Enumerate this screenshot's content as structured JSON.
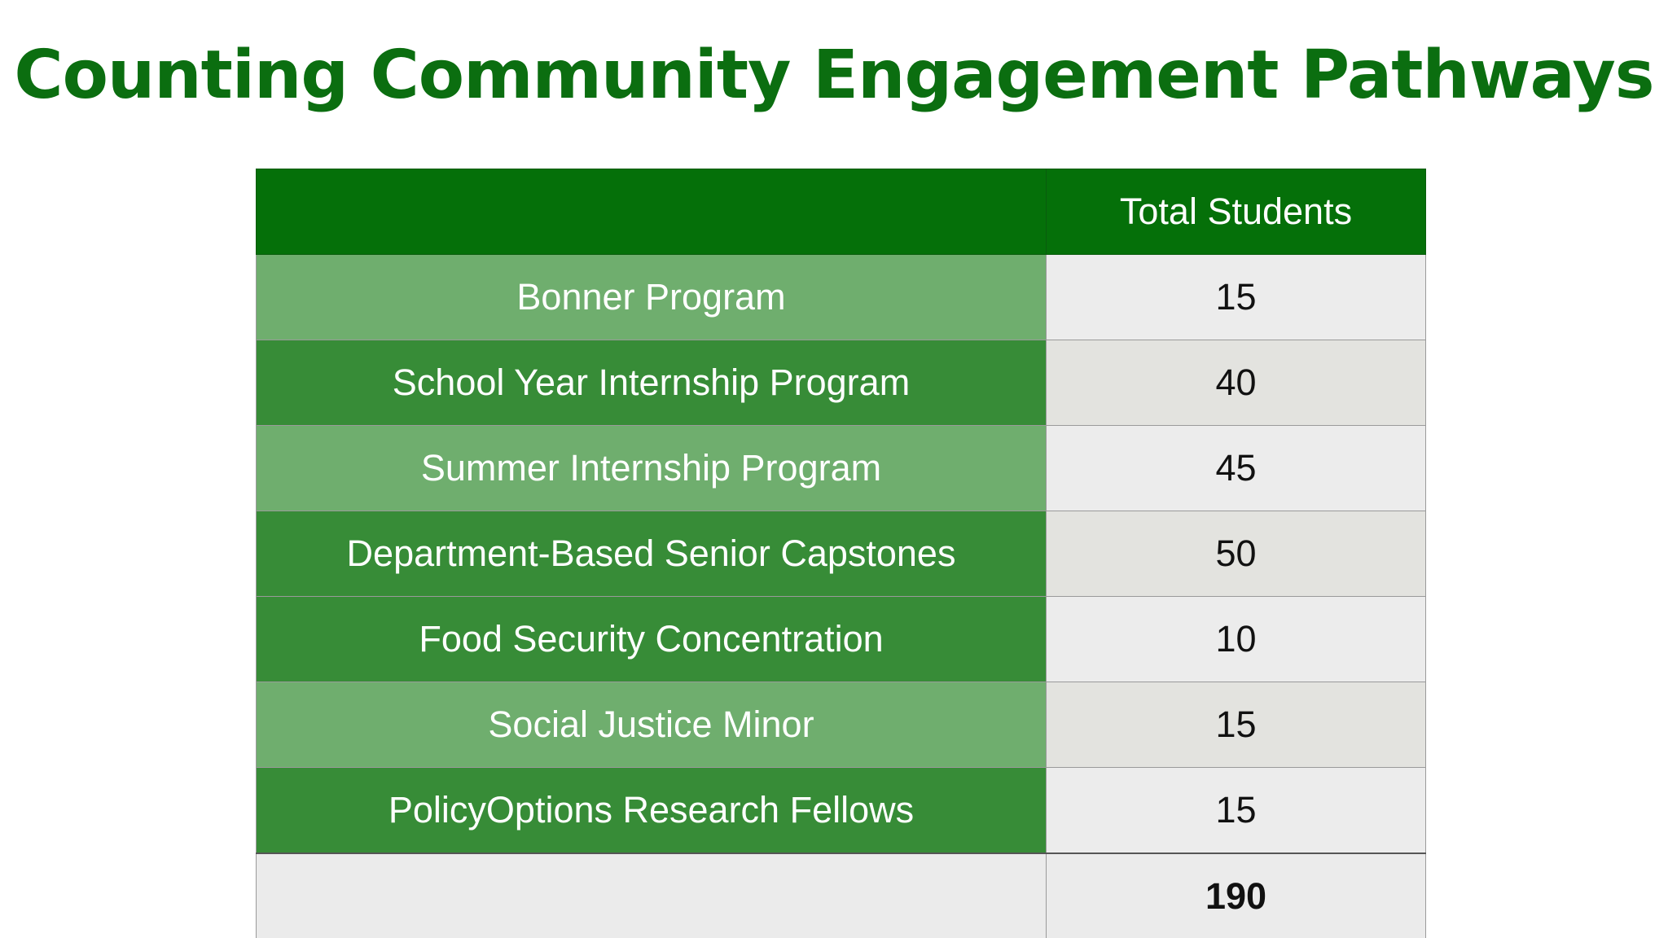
{
  "title": "Counting Community Engagement Pathways",
  "table": {
    "header": {
      "label": "",
      "value": "Total Students"
    },
    "rows": [
      {
        "program": "Bonner Program",
        "students": "15"
      },
      {
        "program": "School Year Internship Program",
        "students": "40"
      },
      {
        "program": "Summer Internship Program",
        "students": "45"
      },
      {
        "program": "Department-Based Senior Capstones",
        "students": "50"
      },
      {
        "program": "Food Security Concentration",
        "students": "10"
      },
      {
        "program": "Social Justice Minor",
        "students": "15"
      },
      {
        "program": "PolicyOptions Research Fellows",
        "students": "15"
      }
    ],
    "total": {
      "label": "",
      "value": "190"
    }
  },
  "colors": {
    "title": "#0b6e10",
    "header_bg": "#057009",
    "row_light": "#6fae6e",
    "row_dark": "#378c37"
  }
}
